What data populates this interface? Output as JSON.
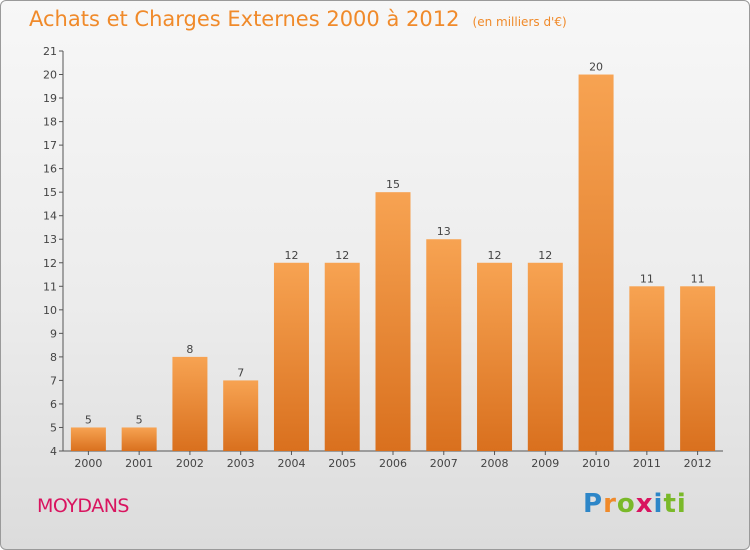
{
  "header": {
    "title": "Achats et Charges Externes 2000 à 2012",
    "unit": "(en milliers d'€)"
  },
  "footer": {
    "commune": "MOYDANS",
    "logo": "Proxiti"
  },
  "colors": {
    "bar_top": "#f7a352",
    "bar_bottom": "#d9701e",
    "title": "#f08a2a",
    "commune": "#d9145f"
  },
  "chart_data": {
    "type": "bar",
    "categories": [
      "2000",
      "2001",
      "2002",
      "2003",
      "2004",
      "2005",
      "2006",
      "2007",
      "2008",
      "2009",
      "2010",
      "2011",
      "2012"
    ],
    "values": [
      5,
      5,
      8,
      7,
      12,
      12,
      15,
      13,
      12,
      12,
      20,
      11,
      11
    ],
    "value_labels": [
      "5",
      "5",
      "8",
      "7",
      "12",
      "12",
      "15",
      "13",
      "12",
      "12",
      "20",
      "11",
      "11"
    ],
    "ylim": [
      4,
      21
    ],
    "yticks": [
      4,
      5,
      6,
      7,
      8,
      9,
      10,
      11,
      12,
      13,
      14,
      15,
      16,
      17,
      18,
      19,
      20,
      21
    ],
    "grid": false,
    "legend": "none"
  }
}
